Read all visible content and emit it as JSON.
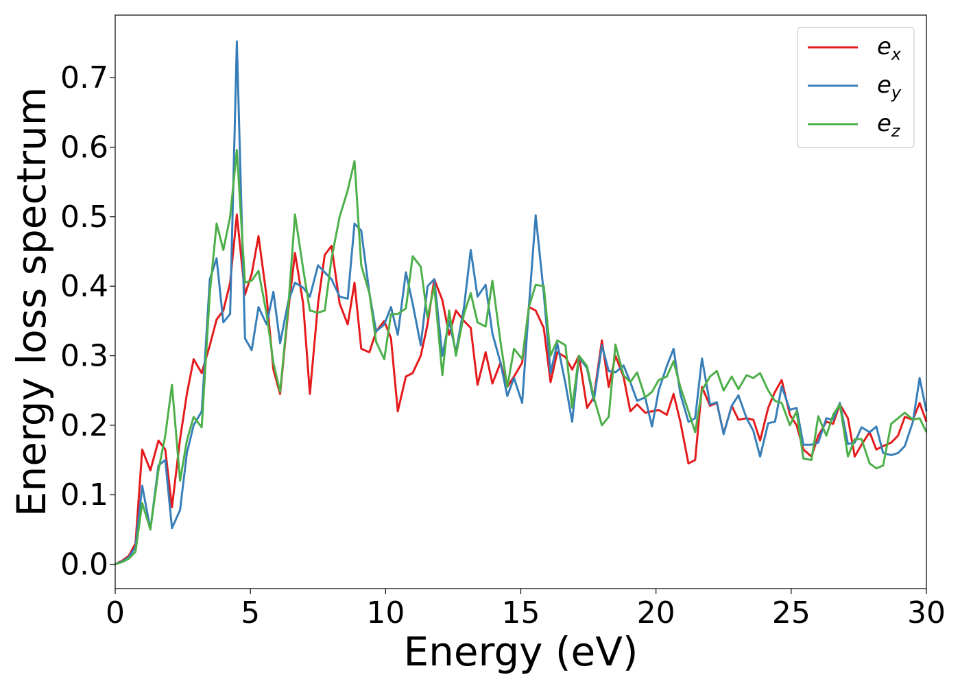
{
  "chart_data": {
    "type": "line",
    "title": "",
    "xlabel": "Energy (eV)",
    "ylabel": "Energy loss spectrum",
    "xlim": [
      0,
      30
    ],
    "ylim": [
      -0.035,
      0.79
    ],
    "xticks": [
      0,
      5,
      10,
      15,
      20,
      25,
      30
    ],
    "xtick_labels": [
      "0",
      "5",
      "10",
      "15",
      "20",
      "25",
      "30"
    ],
    "yticks": [
      0.0,
      0.1,
      0.2,
      0.3,
      0.4,
      0.5,
      0.6,
      0.7
    ],
    "ytick_labels": [
      "0.0",
      "0.1",
      "0.2",
      "0.3",
      "0.4",
      "0.5",
      "0.6",
      "0.7"
    ],
    "grid": false,
    "legend_position": "top-right",
    "x": [
      0,
      0.25,
      0.5,
      0.75,
      1.0,
      1.3,
      1.6,
      1.85,
      2.1,
      2.4,
      2.65,
      2.9,
      3.2,
      3.5,
      3.75,
      4.0,
      4.25,
      4.5,
      4.8,
      5.05,
      5.3,
      5.6,
      5.85,
      6.1,
      6.4,
      6.65,
      6.95,
      7.2,
      7.5,
      7.75,
      8.0,
      8.3,
      8.6,
      8.85,
      9.1,
      9.4,
      9.65,
      9.95,
      10.2,
      10.45,
      10.75,
      11.0,
      11.3,
      11.55,
      11.8,
      12.1,
      12.35,
      12.6,
      12.9,
      13.15,
      13.4,
      13.7,
      13.95,
      14.25,
      14.5,
      14.75,
      15.05,
      15.3,
      15.55,
      15.85,
      16.1,
      16.35,
      16.65,
      16.9,
      17.15,
      17.45,
      17.7,
      18.0,
      18.25,
      18.5,
      18.8,
      19.05,
      19.3,
      19.6,
      19.85,
      20.1,
      20.4,
      20.65,
      20.9,
      21.2,
      21.45,
      21.7,
      22.0,
      22.25,
      22.5,
      22.8,
      23.05,
      23.35,
      23.6,
      23.85,
      24.15,
      24.4,
      24.65,
      24.95,
      25.2,
      25.45,
      25.75,
      26.0,
      26.3,
      26.55,
      26.8,
      27.1,
      27.35,
      27.6,
      27.9,
      28.15,
      28.4,
      28.7,
      28.95,
      29.2,
      29.5,
      29.75,
      30.0
    ],
    "series": [
      {
        "name": "e_x",
        "color": "#e41a1c",
        "values": [
          0.0,
          0.005,
          0.012,
          0.03,
          0.165,
          0.135,
          0.178,
          0.165,
          0.082,
          0.18,
          0.245,
          0.295,
          0.275,
          0.315,
          0.352,
          0.365,
          0.405,
          0.503,
          0.388,
          0.418,
          0.472,
          0.385,
          0.28,
          0.245,
          0.365,
          0.448,
          0.375,
          0.245,
          0.375,
          0.445,
          0.458,
          0.375,
          0.345,
          0.405,
          0.31,
          0.305,
          0.335,
          0.35,
          0.325,
          0.22,
          0.27,
          0.275,
          0.3,
          0.345,
          0.41,
          0.38,
          0.33,
          0.365,
          0.35,
          0.34,
          0.258,
          0.305,
          0.26,
          0.29,
          0.255,
          0.27,
          0.29,
          0.37,
          0.365,
          0.34,
          0.262,
          0.305,
          0.298,
          0.28,
          0.3,
          0.225,
          0.24,
          0.322,
          0.255,
          0.3,
          0.27,
          0.22,
          0.23,
          0.218,
          0.22,
          0.222,
          0.215,
          0.245,
          0.205,
          0.145,
          0.15,
          0.255,
          0.228,
          0.232,
          0.188,
          0.228,
          0.208,
          0.21,
          0.208,
          0.178,
          0.225,
          0.248,
          0.265,
          0.215,
          0.2,
          0.165,
          0.155,
          0.185,
          0.205,
          0.202,
          0.23,
          0.21,
          0.155,
          0.172,
          0.19,
          0.165,
          0.17,
          0.175,
          0.185,
          0.212,
          0.208,
          0.232,
          0.205
        ]
      },
      {
        "name": "e_y",
        "color": "#377eb8",
        "values": [
          0.0,
          0.004,
          0.01,
          0.025,
          0.113,
          0.05,
          0.142,
          0.15,
          0.052,
          0.078,
          0.16,
          0.2,
          0.22,
          0.41,
          0.44,
          0.348,
          0.36,
          0.752,
          0.325,
          0.308,
          0.37,
          0.345,
          0.392,
          0.318,
          0.378,
          0.405,
          0.398,
          0.385,
          0.43,
          0.42,
          0.41,
          0.385,
          0.382,
          0.49,
          0.48,
          0.39,
          0.335,
          0.345,
          0.37,
          0.33,
          0.42,
          0.375,
          0.315,
          0.4,
          0.41,
          0.3,
          0.35,
          0.305,
          0.37,
          0.452,
          0.385,
          0.402,
          0.332,
          0.29,
          0.242,
          0.268,
          0.232,
          0.37,
          0.502,
          0.39,
          0.275,
          0.318,
          0.26,
          0.205,
          0.298,
          0.282,
          0.235,
          0.315,
          0.278,
          0.276,
          0.286,
          0.262,
          0.235,
          0.24,
          0.198,
          0.25,
          0.285,
          0.31,
          0.245,
          0.205,
          0.21,
          0.296,
          0.23,
          0.233,
          0.187,
          0.228,
          0.243,
          0.21,
          0.192,
          0.155,
          0.203,
          0.205,
          0.256,
          0.222,
          0.225,
          0.172,
          0.172,
          0.175,
          0.21,
          0.208,
          0.232,
          0.173,
          0.175,
          0.197,
          0.19,
          0.198,
          0.16,
          0.157,
          0.16,
          0.17,
          0.205,
          0.268,
          0.22
        ]
      },
      {
        "name": "e_z",
        "color": "#4daf4a",
        "values": [
          0.0,
          0.003,
          0.008,
          0.018,
          0.088,
          0.05,
          0.135,
          0.185,
          0.258,
          0.12,
          0.178,
          0.212,
          0.197,
          0.39,
          0.49,
          0.452,
          0.5,
          0.596,
          0.405,
          0.408,
          0.422,
          0.36,
          0.29,
          0.248,
          0.37,
          0.503,
          0.425,
          0.365,
          0.362,
          0.365,
          0.44,
          0.5,
          0.538,
          0.58,
          0.43,
          0.39,
          0.32,
          0.295,
          0.36,
          0.36,
          0.368,
          0.443,
          0.428,
          0.355,
          0.4,
          0.272,
          0.365,
          0.3,
          0.36,
          0.39,
          0.348,
          0.342,
          0.408,
          0.32,
          0.255,
          0.31,
          0.295,
          0.37,
          0.402,
          0.4,
          0.3,
          0.322,
          0.315,
          0.225,
          0.3,
          0.285,
          0.24,
          0.2,
          0.212,
          0.316,
          0.272,
          0.262,
          0.276,
          0.24,
          0.248,
          0.265,
          0.27,
          0.292,
          0.255,
          0.22,
          0.19,
          0.25,
          0.27,
          0.278,
          0.25,
          0.27,
          0.252,
          0.272,
          0.268,
          0.275,
          0.25,
          0.235,
          0.232,
          0.2,
          0.22,
          0.152,
          0.15,
          0.213,
          0.185,
          0.215,
          0.23,
          0.155,
          0.18,
          0.18,
          0.145,
          0.138,
          0.142,
          0.202,
          0.21,
          0.218,
          0.208,
          0.21,
          0.19
        ]
      }
    ],
    "legend": [
      {
        "base": "e",
        "sub": "x",
        "color": "#e41a1c"
      },
      {
        "base": "e",
        "sub": "y",
        "color": "#377eb8"
      },
      {
        "base": "e",
        "sub": "z",
        "color": "#4daf4a"
      }
    ]
  }
}
